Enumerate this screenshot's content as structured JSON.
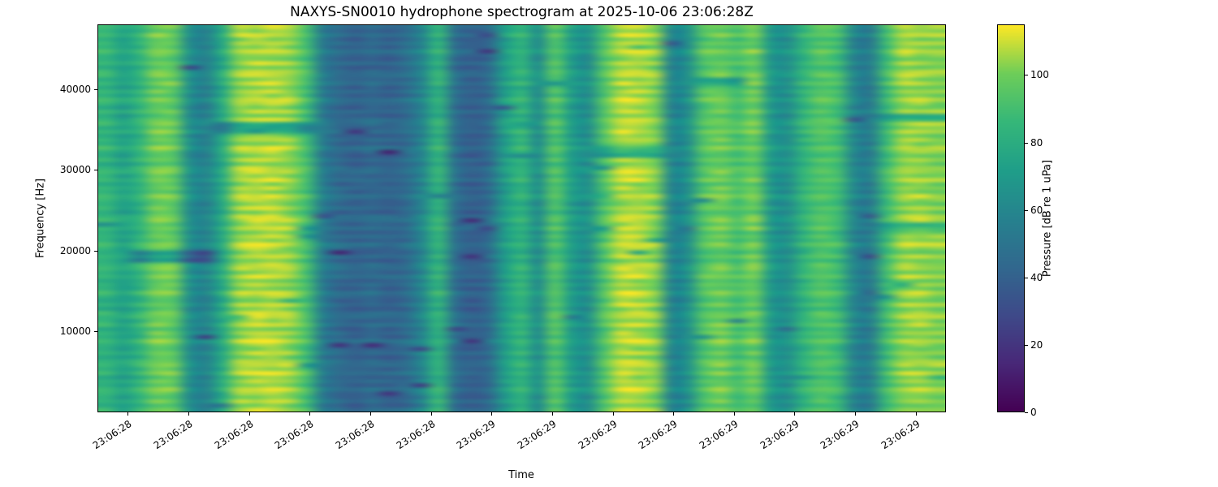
{
  "chart_data": {
    "type": "heatmap",
    "subtype": "spectrogram",
    "title": "NAXYS-SN0010 hydrophone spectrogram at 2025-10-06 23:06:28Z",
    "xlabel": "Time",
    "ylabel": "Frequency [Hz]",
    "x_tick_labels": [
      "23:06:28",
      "23:06:28",
      "23:06:28",
      "23:06:28",
      "23:06:28",
      "23:06:28",
      "23:06:29",
      "23:06:29",
      "23:06:29",
      "23:06:29",
      "23:06:29",
      "23:06:29",
      "23:06:29",
      "23:06:29"
    ],
    "y_ticks_hz": [
      10000,
      20000,
      30000,
      40000
    ],
    "freq_range_hz": [
      0,
      48000
    ],
    "colorbar": {
      "label": "Pressure [dB re 1 uPa]",
      "ticks": [
        0,
        20,
        40,
        60,
        80,
        100
      ],
      "vmin": 0,
      "vmax": 115,
      "colormap": "viridis",
      "stops": [
        "#440154",
        "#482878",
        "#3e4a89",
        "#31688e",
        "#26828e",
        "#1f9e89",
        "#35b779",
        "#6dcd59",
        "#fde725"
      ]
    },
    "column_levels_db": [
      85,
      75,
      85,
      100,
      98,
      65,
      58,
      80,
      105,
      108,
      108,
      105,
      92,
      55,
      45,
      42,
      45,
      42,
      46,
      60,
      85,
      48,
      40,
      45,
      72,
      85,
      65,
      95,
      72,
      65,
      95,
      108,
      108,
      103,
      60,
      65,
      95,
      100,
      92,
      100,
      70,
      65,
      85,
      95,
      90,
      60,
      55,
      90,
      105,
      105,
      103
    ],
    "freq_bins": 96,
    "row_stripe_db": [
      3,
      -3,
      4,
      -5,
      1,
      -4,
      5,
      -1,
      -5,
      2,
      -6,
      2
    ],
    "noise_db": 7,
    "dropout_prob": 0.012,
    "noise_seed": 42,
    "dark_lines": [
      {
        "x0": 0.14,
        "x1": 0.25,
        "freq_hz": 35300,
        "half_hz": 700,
        "drop_db": 30
      },
      {
        "x0": 0.04,
        "x1": 0.14,
        "freq_hz": 19200,
        "half_hz": 700,
        "drop_db": 25
      },
      {
        "x0": 0.59,
        "x1": 0.66,
        "freq_hz": 32300,
        "half_hz": 600,
        "drop_db": 22
      },
      {
        "x0": 0.7,
        "x1": 0.77,
        "freq_hz": 41000,
        "half_hz": 600,
        "drop_db": 22
      },
      {
        "x0": 0.93,
        "x1": 1.0,
        "freq_hz": 36400,
        "half_hz": 600,
        "drop_db": 20
      },
      {
        "x0": 0.93,
        "x1": 1.0,
        "freq_hz": 22800,
        "half_hz": 500,
        "drop_db": 18
      }
    ]
  }
}
